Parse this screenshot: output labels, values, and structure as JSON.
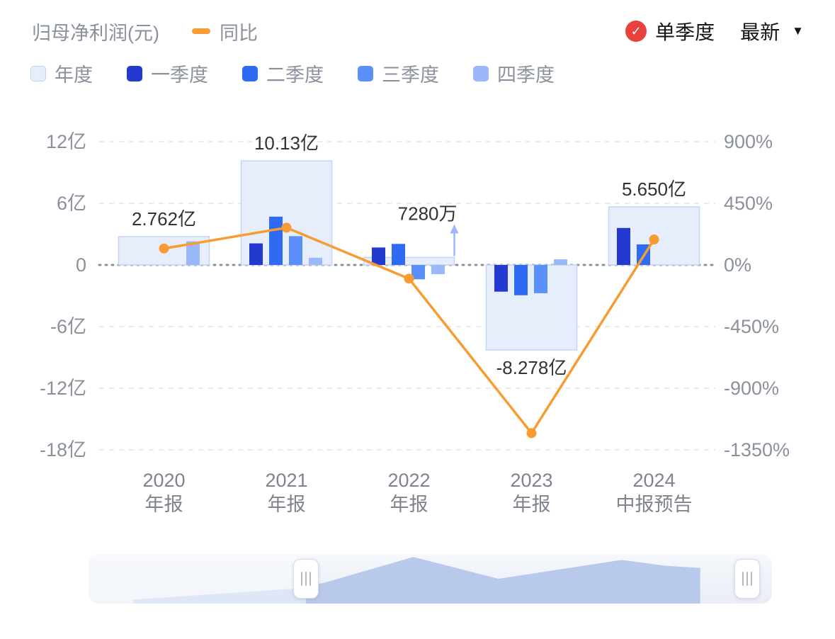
{
  "header": {
    "title": "归母净利润(元)",
    "line_legend": "同比",
    "single_quarter_label": "单季度",
    "latest_label": "最新",
    "check_mark": "✓",
    "caret": "▼"
  },
  "chart_data": {
    "type": "bar+line",
    "categories": [
      {
        "line1": "2020",
        "line2": "年报"
      },
      {
        "line1": "2021",
        "line2": "年报"
      },
      {
        "line1": "2022",
        "line2": "年报"
      },
      {
        "line1": "2023",
        "line2": "年报"
      },
      {
        "line1": "2024",
        "line2": "中报预告"
      }
    ],
    "annual": {
      "name": "年度",
      "values_yi": [
        2.762,
        10.13,
        0.728,
        -8.278,
        5.65
      ],
      "labels": [
        "2.762亿",
        "10.13亿",
        "7280万",
        "-8.278亿",
        "5.650亿"
      ],
      "label_arrow": [
        false,
        false,
        true,
        false,
        false
      ]
    },
    "quarters": [
      {
        "name": "一季度",
        "values_yi": [
          null,
          2.1,
          1.7,
          -2.6,
          3.6
        ]
      },
      {
        "name": "二季度",
        "values_yi": [
          null,
          4.7,
          2.05,
          -2.95,
          2.0
        ]
      },
      {
        "name": "三季度",
        "values_yi": [
          null,
          2.8,
          -1.4,
          -2.75,
          null
        ]
      },
      {
        "name": "四季度",
        "values_yi": [
          2.3,
          0.7,
          -0.9,
          0.55,
          null
        ]
      }
    ],
    "yoy_line": {
      "name": "同比",
      "values_pct": [
        120,
        272,
        -100,
        -1228,
        186
      ]
    },
    "left_axis": {
      "ticks": [
        "12亿",
        "6亿",
        "0",
        "-6亿",
        "-12亿",
        "-18亿"
      ],
      "values": [
        12,
        6,
        0,
        -6,
        -12,
        -18
      ]
    },
    "right_axis": {
      "ticks": [
        "900%",
        "450%",
        "0%",
        "-450%",
        "-900%",
        "-1350%"
      ],
      "values": [
        900,
        450,
        0,
        -450,
        -900,
        -1350
      ]
    },
    "colors": {
      "annual_fill": "#e7eefb",
      "annual_stroke": "#c2d4f8",
      "q1": "#2439cf",
      "q2": "#2f6af5",
      "q3": "#5b8ff9",
      "q4": "#9ab8fa",
      "line": "#f79b32",
      "grid": "#e3e4e8",
      "zero_line": "#8b9099",
      "axis_text": "#8b919c",
      "x_text": "#7e838e",
      "label_text": "#333333",
      "badge_red": "#e8413e",
      "overview_fill": "#b9c9ec"
    },
    "overview": {
      "points": [
        [
          0.065,
          0.92
        ],
        [
          0.3,
          0.7
        ],
        [
          0.345,
          0.58
        ],
        [
          0.475,
          0.06
        ],
        [
          0.6,
          0.5
        ],
        [
          0.78,
          0.12
        ],
        [
          0.845,
          0.24
        ],
        [
          0.895,
          0.28
        ],
        [
          0.895,
          1.0
        ],
        [
          0.065,
          1.0
        ]
      ],
      "handle_positions": [
        0.318,
        0.964
      ]
    }
  }
}
